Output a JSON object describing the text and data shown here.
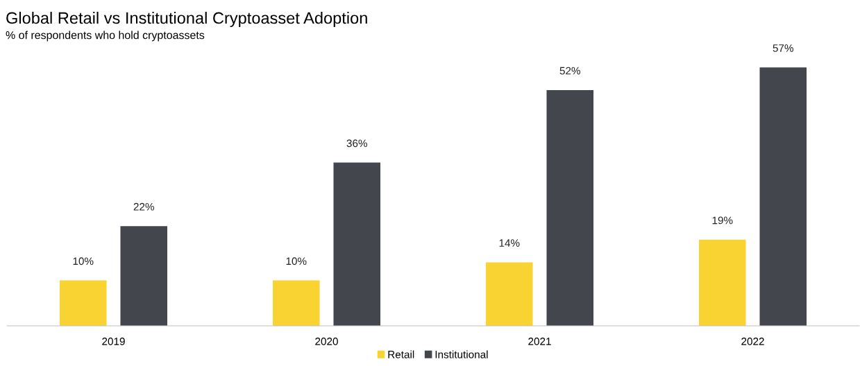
{
  "chart_data": {
    "type": "bar",
    "title": "Global Retail vs Institutional Cryptoasset Adoption",
    "subtitle": "% of respondents who hold cryptoassets",
    "categories": [
      "2019",
      "2020",
      "2021",
      "2022"
    ],
    "series": [
      {
        "name": "Retail",
        "color": "#f9d331",
        "values": [
          10,
          10,
          14,
          19
        ],
        "value_labels": [
          "10%",
          "10%",
          "14%",
          "19%"
        ]
      },
      {
        "name": "Institutional",
        "color": "#43464d",
        "values": [
          22,
          36,
          52,
          57
        ],
        "value_labels": [
          "22%",
          "36%",
          "52%",
          "57%"
        ]
      }
    ],
    "legend": "bottom",
    "grid": false,
    "tick_labels": "x"
  }
}
